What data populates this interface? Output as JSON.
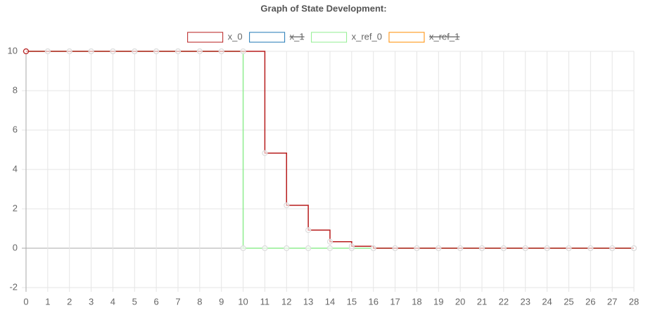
{
  "chart_data": {
    "type": "line",
    "stepped": true,
    "title": "Graph of State Development:",
    "x": [
      0,
      1,
      2,
      3,
      4,
      5,
      6,
      7,
      8,
      9,
      10,
      11,
      12,
      13,
      14,
      15,
      16,
      17,
      18,
      19,
      20,
      21,
      22,
      23,
      24,
      25,
      26,
      27,
      28
    ],
    "series": [
      {
        "name": "x_0",
        "color": "#b71c1c",
        "values": [
          10,
          10,
          10,
          10,
          10,
          10,
          10,
          10,
          10,
          10,
          10,
          4.83,
          2.18,
          0.92,
          0.33,
          0.1,
          0,
          0,
          0,
          0,
          0,
          0,
          0,
          0,
          0,
          0,
          0,
          0,
          0
        ]
      },
      {
        "name": "x_1",
        "color": "#1f77b4",
        "hidden": true
      },
      {
        "name": "x_ref_0",
        "color": "#90ee90",
        "values": [
          10,
          10,
          10,
          10,
          10,
          10,
          10,
          10,
          10,
          10,
          0,
          0,
          0,
          0,
          0,
          0,
          0,
          0,
          0,
          0,
          0,
          0,
          0,
          0,
          0,
          0,
          0,
          0,
          0
        ]
      },
      {
        "name": "x_ref_1",
        "color": "#ff8c00",
        "hidden": true
      }
    ],
    "xlim": [
      0,
      28
    ],
    "xticks": [
      0,
      1,
      2,
      3,
      4,
      5,
      6,
      7,
      8,
      9,
      10,
      11,
      12,
      13,
      14,
      15,
      16,
      17,
      18,
      19,
      20,
      21,
      22,
      23,
      24,
      25,
      26,
      27,
      28
    ],
    "ylim": [
      -2,
      10
    ],
    "yticks": [
      -2,
      0,
      2,
      4,
      6,
      8,
      10
    ],
    "grid": true,
    "legend": "top"
  }
}
